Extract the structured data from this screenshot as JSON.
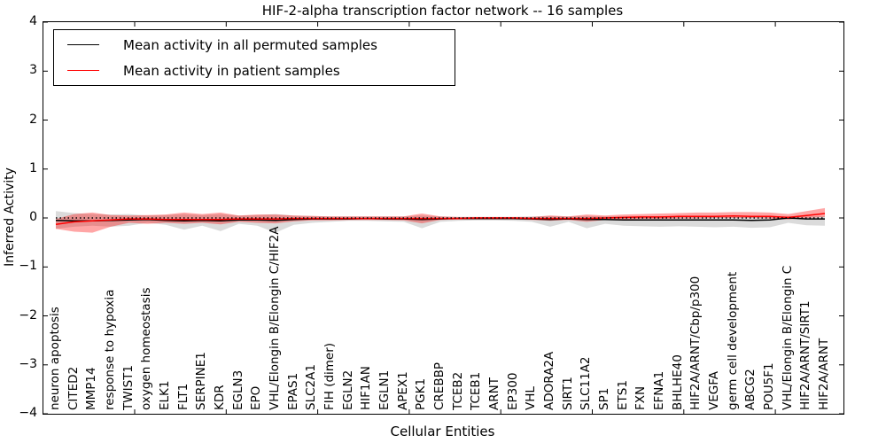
{
  "chart_data": {
    "type": "line",
    "title": "HIF-2-alpha transcription factor network -- 16 samples",
    "xlabel": "Cellular Entities",
    "ylabel": "Inferred Activity",
    "ylim": [
      -4,
      4
    ],
    "xlim_units": 43.7,
    "grid": false,
    "legend_position": "upper left",
    "zero_reference_line": "dotted black at y=0",
    "ytick_values": [
      4,
      3,
      2,
      1,
      0,
      -1,
      -2,
      -3,
      -4
    ],
    "ytick_labels": [
      "4",
      "3",
      "2",
      "1",
      "0",
      "−1",
      "−2",
      "−3",
      "−4"
    ],
    "categories": [
      "neuron apoptosis",
      "CITED2",
      "MMP14",
      "response to hypoxia",
      "TWIST1",
      "oxygen homeostasis",
      "ELK1",
      "FLT1",
      "SERPINE1",
      "KDR",
      "EGLN3",
      "EPO",
      "VHL/Elongin B/Elongin C/HIF2A",
      "EPAS1",
      "SLC2A1",
      "FIH (dimer)",
      "EGLN2",
      "HIF1AN",
      "EGLN1",
      "APEX1",
      "PGK1",
      "CREBBP",
      "TCEB2",
      "TCEB1",
      "ARNT",
      "EP300",
      "VHL",
      "ADORA2A",
      "SIRT1",
      "SLC11A2",
      "SP1",
      "ETS1",
      "FXN",
      "EFNA1",
      "BHLHE40",
      "HIF2A/ARNT/Cbp/p300",
      "VEGFA",
      "germ cell development",
      "ABCG2",
      "POU5F1",
      "VHL/Elongin B/Elongin C",
      "HIF2A/ARNT/SIRT1",
      "HIF2A/ARNT"
    ],
    "series": [
      {
        "name": "Mean activity in all permuted samples",
        "color": "#000000",
        "line_style": "solid",
        "band_color": "rgba(0,0,0,0.14)",
        "values": [
          -0.05,
          -0.06,
          -0.06,
          -0.05,
          -0.04,
          -0.03,
          -0.05,
          -0.06,
          -0.05,
          -0.06,
          -0.04,
          -0.04,
          -0.05,
          -0.03,
          -0.02,
          -0.02,
          -0.02,
          -0.01,
          -0.02,
          -0.02,
          -0.03,
          -0.02,
          -0.01,
          -0.01,
          -0.01,
          -0.01,
          -0.02,
          -0.03,
          -0.02,
          -0.03,
          -0.03,
          -0.04,
          -0.04,
          -0.04,
          -0.04,
          -0.04,
          -0.04,
          -0.04,
          -0.05,
          -0.04,
          0.0,
          -0.02,
          -0.02
        ],
        "band_lo": [
          -0.22,
          -0.18,
          -0.16,
          -0.18,
          -0.16,
          -0.1,
          -0.14,
          -0.24,
          -0.16,
          -0.27,
          -0.12,
          -0.16,
          -0.3,
          -0.14,
          -0.1,
          -0.08,
          -0.06,
          -0.06,
          -0.07,
          -0.08,
          -0.21,
          -0.08,
          -0.06,
          -0.05,
          -0.05,
          -0.06,
          -0.08,
          -0.18,
          -0.08,
          -0.21,
          -0.12,
          -0.16,
          -0.17,
          -0.18,
          -0.17,
          -0.18,
          -0.19,
          -0.18,
          -0.2,
          -0.19,
          -0.1,
          -0.15,
          -0.16
        ],
        "band_hi": [
          0.14,
          0.1,
          0.08,
          0.07,
          0.08,
          0.05,
          0.06,
          0.08,
          0.06,
          0.08,
          0.05,
          0.06,
          0.08,
          0.05,
          0.04,
          0.03,
          0.03,
          0.03,
          0.03,
          0.03,
          0.05,
          0.03,
          0.02,
          0.02,
          0.02,
          0.02,
          0.03,
          0.04,
          0.03,
          0.04,
          0.03,
          0.03,
          0.03,
          0.03,
          0.02,
          0.02,
          0.02,
          0.02,
          0.02,
          0.02,
          0.03,
          0.03,
          0.04
        ]
      },
      {
        "name": "Mean activity in patient samples",
        "color": "#ff0000",
        "line_style": "solid",
        "band_color": "rgba(255,0,0,0.35)",
        "values": [
          -0.13,
          -0.08,
          -0.06,
          -0.04,
          -0.02,
          -0.02,
          -0.03,
          -0.03,
          -0.03,
          -0.03,
          -0.02,
          -0.02,
          -0.02,
          -0.01,
          -0.01,
          -0.01,
          -0.01,
          -0.01,
          -0.01,
          -0.01,
          -0.01,
          -0.01,
          -0.01,
          0.0,
          0.0,
          0.0,
          -0.01,
          -0.01,
          -0.01,
          -0.01,
          0.0,
          0.01,
          0.02,
          0.02,
          0.03,
          0.03,
          0.03,
          0.04,
          0.03,
          0.03,
          0.01,
          0.05,
          0.09
        ],
        "band_lo": [
          -0.22,
          -0.28,
          -0.3,
          -0.18,
          -0.1,
          -0.12,
          -0.1,
          -0.12,
          -0.1,
          -0.13,
          -0.08,
          -0.1,
          -0.11,
          -0.07,
          -0.05,
          -0.05,
          -0.04,
          -0.04,
          -0.04,
          -0.05,
          -0.11,
          -0.04,
          -0.03,
          -0.03,
          -0.03,
          -0.03,
          -0.04,
          -0.06,
          -0.04,
          -0.08,
          -0.04,
          -0.03,
          -0.02,
          -0.02,
          -0.01,
          -0.01,
          0.0,
          0.0,
          0.0,
          -0.01,
          -0.03,
          0.0,
          0.02
        ],
        "band_hi": [
          -0.02,
          0.08,
          0.11,
          0.06,
          0.05,
          0.06,
          0.07,
          0.11,
          0.08,
          0.11,
          0.05,
          0.07,
          0.07,
          0.05,
          0.04,
          0.03,
          0.03,
          0.03,
          0.03,
          0.03,
          0.09,
          0.03,
          0.02,
          0.02,
          0.02,
          0.02,
          0.02,
          0.05,
          0.03,
          0.07,
          0.05,
          0.07,
          0.08,
          0.09,
          0.1,
          0.11,
          0.11,
          0.12,
          0.12,
          0.11,
          0.08,
          0.14,
          0.2
        ]
      }
    ]
  }
}
